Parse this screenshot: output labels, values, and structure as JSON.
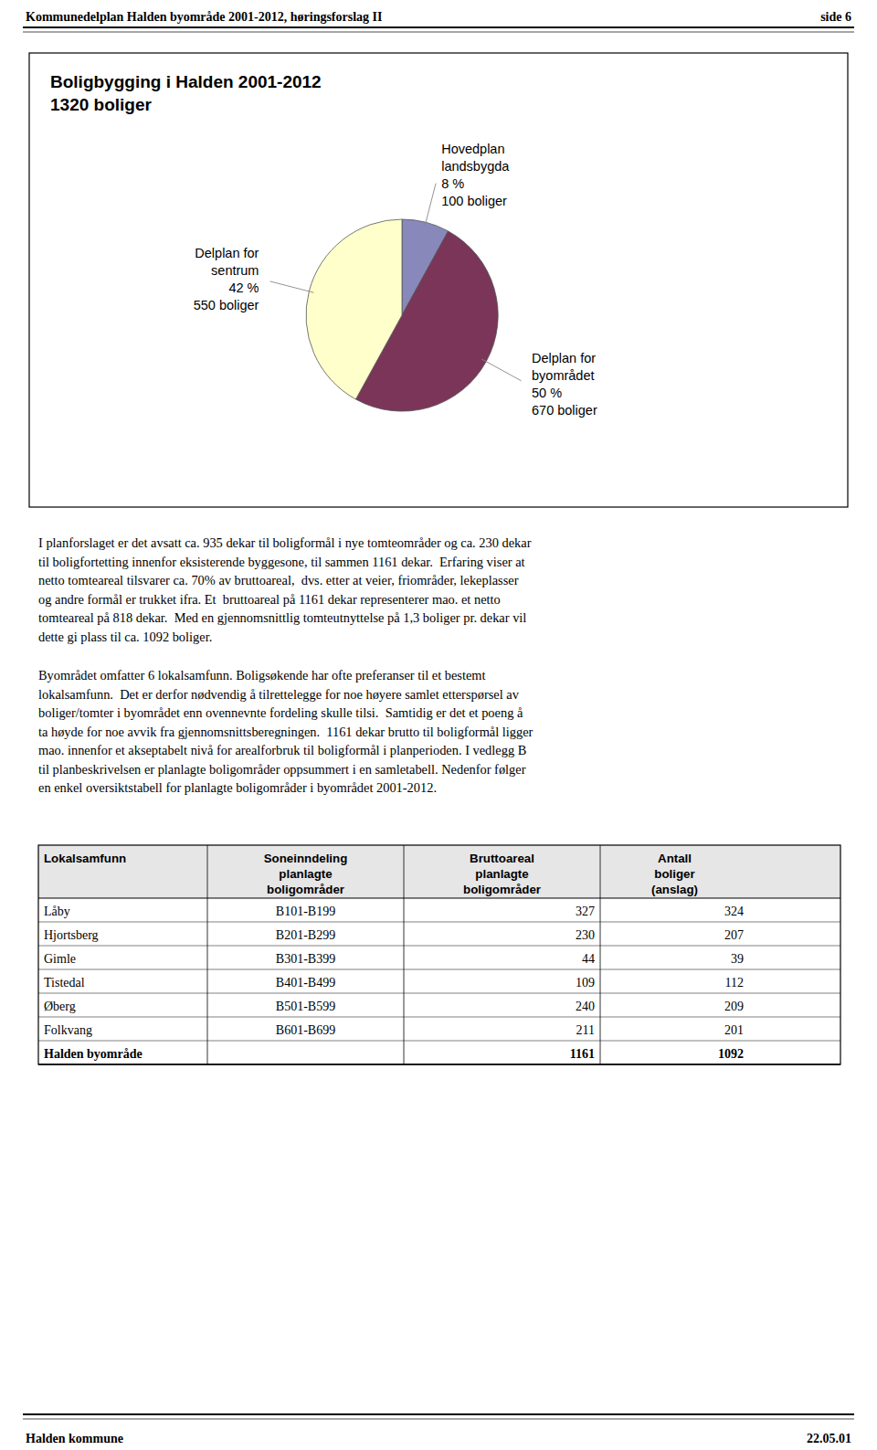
{
  "chart_data": {
    "type": "pie",
    "title": "Boligbygging i Halden 2001-2012",
    "subtitle": "1320 boliger",
    "categories": [
      "Hovedplan\nlandsbygda",
      "Delplan for\nbyområdet",
      "Delplan for\nsentrum"
    ],
    "values": [
      8,
      50,
      42
    ],
    "value_labels": [
      "8 %",
      "50 %",
      "42 %"
    ],
    "dwelling_labels": [
      "100 boliger",
      "670 boliger",
      "550 boliger"
    ],
    "colors": [
      "#8888BB",
      "#7B3558",
      "#FFFFCC"
    ],
    "data_labels": true
  },
  "page": {
    "header_left": "Kommunedelplan Halden byområde 2001-2012, høringsforslag II",
    "header_right": "side 6",
    "footer_left": "Halden kommune",
    "footer_right": "22.05.01",
    "body_paragraphs": [
      [
        "I planforslaget er det avsatt ca. 935 dekar til boligformål i nye tomteområder og ca. 230 dekar",
        "til boligfortetting innenfor eksisterende byggesone, til sammen 1161 dekar.  Erfaring viser at",
        "netto tomteareal tilsvarer ca. 70% av bruttoareal,  dvs. etter at veier, friområder, lekeplasser",
        "og andre formål er trukket ifra. Et  bruttoareal på 1161 dekar representerer mao. et netto",
        "tomteareal på 818 dekar.  Med en gjennomsnittlig tomteutnyttelse på 1,3 boliger pr. dekar vil",
        "dette gi plass til ca. 1092 boliger."
      ],
      [
        "Byområdet omfatter 6 lokalsamfunn. Boligsøkende har ofte preferanser til et bestemt",
        "lokalsamfunn.  Det er derfor nødvendig å tilrettelegge for noe høyere samlet etterspørsel av",
        "boliger/tomter i byområdet enn ovennevnte fordeling skulle tilsi.  Samtidig er det et poeng å",
        "ta høyde for noe avvik fra gjennomsnittsberegningen.  1161 dekar brutto til boligformål ligger",
        "mao. innenfor et akseptabelt nivå for arealforbruk til boligformål i planperioden. I vedlegg B",
        "til planbeskrivelsen er planlagte boligområder oppsummert i en samletabell. Nedenfor følger",
        "en enkel oversiktstabell for planlagte boligområder i byområdet 2001-2012."
      ]
    ],
    "table": {
      "headers": [
        "Lokalsamfunn",
        "Soneinndeling\nplanlagte\nboligområder",
        "Bruttoareal\nplanlagte\nboligområder",
        "Antall\nboliger\n(anslag)"
      ],
      "rows": [
        [
          "Låby",
          "B101-B199",
          "327",
          "324"
        ],
        [
          "Hjortsberg",
          "B201-B299",
          "230",
          "207"
        ],
        [
          "Gimle",
          "B301-B399",
          "44",
          "39"
        ],
        [
          "Tistedal",
          "B401-B499",
          "109",
          "112"
        ],
        [
          "Øberg",
          "B501-B599",
          "240",
          "209"
        ],
        [
          "Folkvang",
          "B601-B699",
          "211",
          "201"
        ]
      ],
      "total_row": [
        "Halden byområde",
        null,
        "1161",
        "1092"
      ]
    }
  }
}
